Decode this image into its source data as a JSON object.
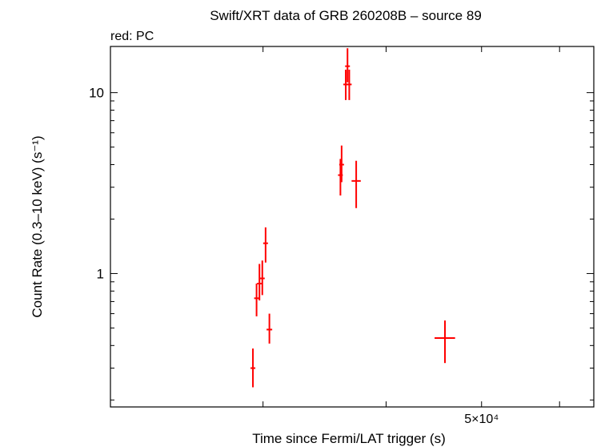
{
  "chart_data": {
    "type": "scatter",
    "title": "Swift/XRT data of GRB 260208B – source 89",
    "subtitle": "red: PC",
    "xlabel": "Time since Fermi/LAT trigger (s)",
    "ylabel": "Count Rate (0.3–10 keV) (s⁻¹)",
    "x_scale": "log",
    "y_scale": "log",
    "xlim": [
      21000,
      65000
    ],
    "ylim": [
      0.183,
      18.0
    ],
    "x_tick_labels": [
      {
        "value": 50000,
        "label": "5×10⁴"
      }
    ],
    "y_tick_labels": [
      {
        "value": 1,
        "label": "1"
      },
      {
        "value": 10,
        "label": "10"
      }
    ],
    "grid": false,
    "series": [
      {
        "color": "#ff0000",
        "points": [
          {
            "x": 29300,
            "xerr": [
              150,
              150
            ],
            "y": 0.3,
            "yerr": [
              0.065,
              0.085
            ]
          },
          {
            "x": 29550,
            "xerr": [
              150,
              150
            ],
            "y": 0.73,
            "yerr": [
              0.15,
              0.15
            ]
          },
          {
            "x": 29750,
            "xerr": [
              150,
              150
            ],
            "y": 0.88,
            "yerr": [
              0.17,
              0.25
            ]
          },
          {
            "x": 29950,
            "xerr": [
              100,
              100
            ],
            "y": 0.94,
            "yerr": [
              0.18,
              0.24
            ]
          },
          {
            "x": 30180,
            "xerr": [
              120,
              120
            ],
            "y": 1.47,
            "yerr": [
              0.32,
              0.33
            ]
          },
          {
            "x": 30450,
            "xerr": [
              200,
              200
            ],
            "y": 0.49,
            "yerr": [
              0.08,
              0.11
            ]
          },
          {
            "x": 35950,
            "xerr": [
              150,
              150
            ],
            "y": 3.5,
            "yerr": [
              0.8,
              0.8
            ]
          },
          {
            "x": 36050,
            "xerr": [
              100,
              100
            ],
            "y": 4.0,
            "yerr": [
              0.8,
              1.1
            ]
          },
          {
            "x": 36400,
            "xerr": [
              100,
              100
            ],
            "y": 11.1,
            "yerr": [
              2.0,
              2.3
            ]
          },
          {
            "x": 36550,
            "xerr": [
              80,
              80
            ],
            "y": 14.0,
            "yerr": [
              2.6,
              3.6
            ]
          },
          {
            "x": 36700,
            "xerr": [
              100,
              100
            ],
            "y": 11.1,
            "yerr": [
              2.0,
              2.3
            ]
          },
          {
            "x": 37300,
            "xerr": [
              400,
              400
            ],
            "y": 3.25,
            "yerr": [
              0.95,
              0.95
            ]
          },
          {
            "x": 45900,
            "xerr": [
              1100,
              1100
            ],
            "y": 0.44,
            "yerr": [
              0.12,
              0.11
            ]
          }
        ]
      }
    ]
  }
}
